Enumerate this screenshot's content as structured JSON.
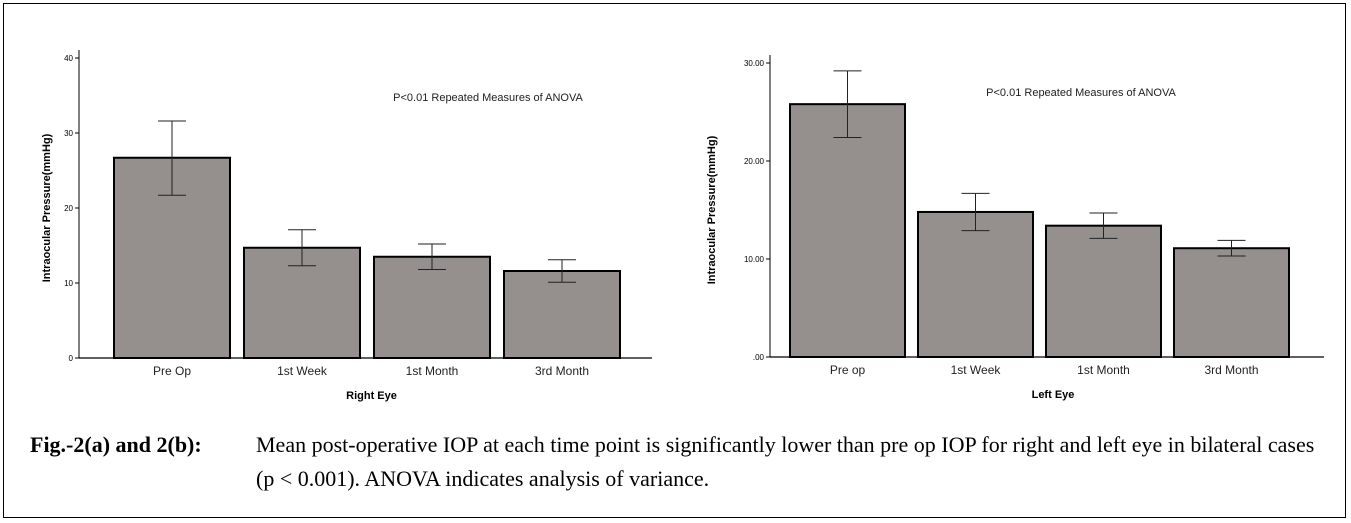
{
  "chart_data": [
    {
      "type": "bar",
      "categories": [
        "Pre Op",
        "1st Week",
        "1st Month",
        "3rd Month"
      ],
      "values": [
        26.7,
        14.7,
        13.5,
        11.6
      ],
      "error_low": [
        21.7,
        12.3,
        11.8,
        10.1
      ],
      "error_high": [
        31.6,
        17.1,
        15.2,
        13.1
      ],
      "xlabel": "Right Eye",
      "ylabel": "Intraocular Pressure(mmHg)",
      "ylim": [
        0,
        40
      ],
      "yticks": [
        0,
        10,
        20,
        30,
        40
      ],
      "ytick_labels": [
        "0",
        "10",
        "20",
        "30",
        "40"
      ],
      "annotation": "P<0.01 Repeated Measures of ANOVA",
      "bar_color": "#958f8e"
    },
    {
      "type": "bar",
      "categories": [
        "Pre op",
        "1st Week",
        "1st Month",
        "3rd Month"
      ],
      "values": [
        25.8,
        14.8,
        13.4,
        11.1
      ],
      "error_low": [
        22.4,
        12.9,
        12.1,
        10.3
      ],
      "error_high": [
        29.2,
        16.7,
        14.7,
        11.9
      ],
      "xlabel": "Left Eye",
      "ylabel": "Intraocular Pressure(mmHg)",
      "ylim": [
        0,
        30
      ],
      "yticks": [
        0,
        10,
        20,
        30
      ],
      "ytick_labels": [
        ".00",
        "10.00",
        "20.00",
        "30.00"
      ],
      "annotation": "P<0.01 Repeated Measures of ANOVA",
      "bar_color": "#958f8e"
    }
  ],
  "caption": {
    "label": "Fig.-2(a) and 2(b):",
    "text": "Mean post-operative IOP at each time point is significantly lower than pre op IOP for right and left eye in bilateral cases (p < 0.001). ANOVA indicates analysis of variance."
  }
}
